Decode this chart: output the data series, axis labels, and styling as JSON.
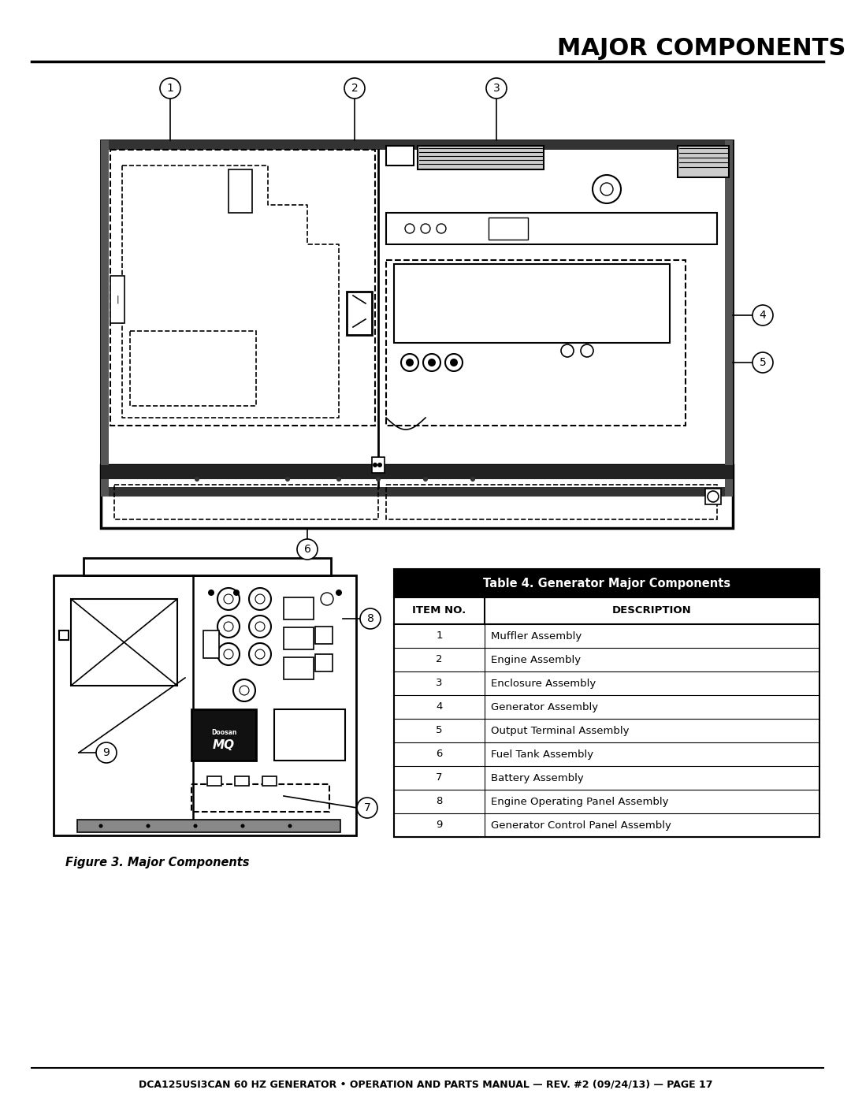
{
  "title": "MAJOR COMPONENTS",
  "footer_text": "DCA125USI3CAN 60 HZ GENERATOR • OPERATION AND PARTS MANUAL — REV. #2 (09/24/13) — PAGE 17",
  "table_title": "Table 4. Generator Major Components",
  "table_header": [
    "ITEM NO.",
    "DESCRIPTION"
  ],
  "table_rows": [
    [
      "1",
      "Muffler Assembly"
    ],
    [
      "2",
      "Engine Assembly"
    ],
    [
      "3",
      "Enclosure Assembly"
    ],
    [
      "4",
      "Generator Assembly"
    ],
    [
      "5",
      "Output Terminal Assembly"
    ],
    [
      "6",
      "Fuel Tank Assembly"
    ],
    [
      "7",
      "Battery Assembly"
    ],
    [
      "8",
      "Engine Operating Panel Assembly"
    ],
    [
      "9",
      "Generator Control Panel Assembly"
    ]
  ],
  "figure_caption": "Figure 3. Major Components",
  "bg_color": "#ffffff"
}
